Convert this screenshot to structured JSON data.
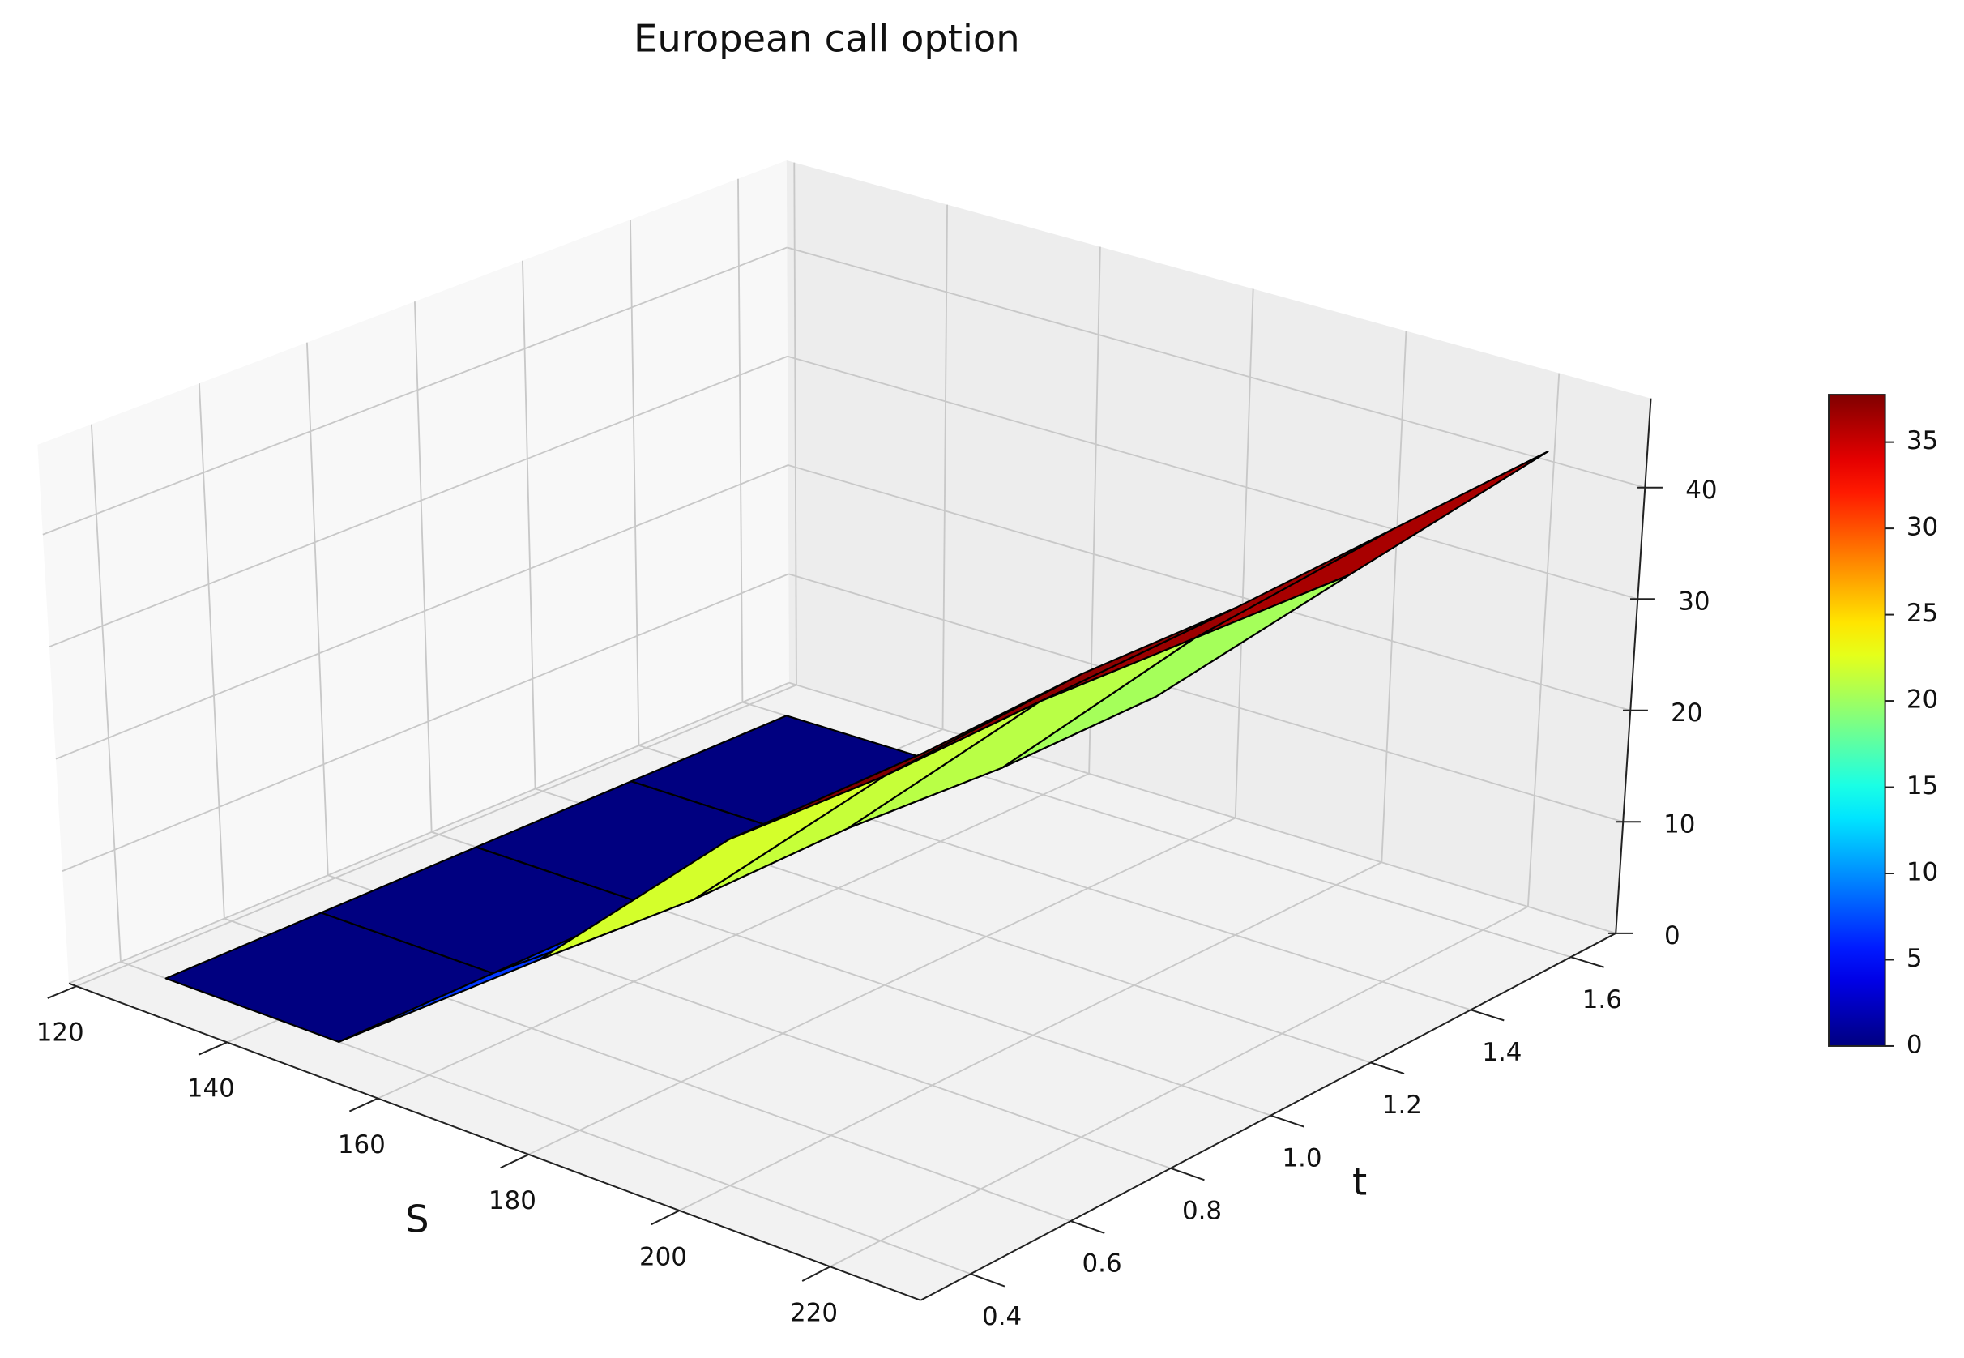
{
  "chart_data": {
    "type": "surface3d",
    "title": "European call option",
    "xlabel": "S",
    "ylabel": "t",
    "x": [
      125,
      148,
      175,
      200,
      225
    ],
    "y": [
      0.4,
      0.7,
      1.0,
      1.3,
      1.6
    ],
    "z": [
      [
        0,
        0,
        0,
        0,
        0
      ],
      [
        0,
        0,
        0,
        0,
        0
      ],
      [
        14,
        13,
        13,
        12,
        12
      ],
      [
        31,
        30,
        30,
        29,
        28
      ],
      [
        45,
        45,
        44,
        44,
        44
      ]
    ],
    "colormap": "jet",
    "xlim": [
      119,
      232
    ],
    "ylim": [
      0.3,
      1.69
    ],
    "zlim": [
      0,
      48
    ],
    "xticks": [
      120,
      140,
      160,
      180,
      200,
      220
    ],
    "yticks": [
      0.4,
      0.6,
      0.8,
      {
        "value": 1,
        "label": "1.0"
      },
      1.2,
      1.4,
      1.6
    ],
    "zticks": [
      0,
      10,
      20,
      30,
      40
    ],
    "colorbar_ticks": [
      0,
      5,
      10,
      15,
      20,
      25,
      30,
      35
    ],
    "grid": true
  }
}
